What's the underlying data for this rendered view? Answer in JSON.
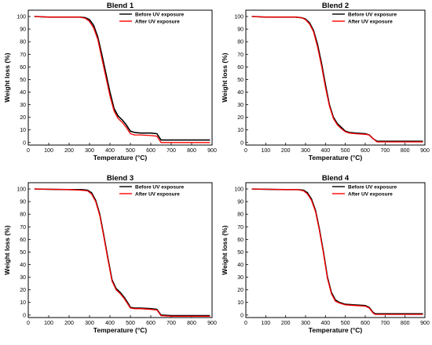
{
  "figure": {
    "background": "#ffffff"
  },
  "chart_data": [
    {
      "type": "line",
      "title": "Blend 1",
      "xlabel": "Temperature (°C)",
      "ylabel": "Weight loss (%)",
      "xlim": [
        0,
        900
      ],
      "ylim": [
        -2,
        105
      ],
      "xticks": [
        0,
        100,
        200,
        300,
        400,
        500,
        600,
        700,
        800,
        900
      ],
      "yticks": [
        0,
        10,
        20,
        30,
        40,
        50,
        60,
        70,
        80,
        90,
        100
      ],
      "grid": false,
      "legend_position": "top-right",
      "series": [
        {
          "name": "Before UV exposure",
          "color": "#000000",
          "x": [
            30,
            100,
            200,
            250,
            280,
            300,
            320,
            340,
            360,
            380,
            400,
            420,
            440,
            460,
            480,
            500,
            520,
            550,
            600,
            630,
            650,
            700,
            800,
            890
          ],
          "y": [
            100,
            99.5,
            99.5,
            99.5,
            99,
            97.5,
            93,
            84,
            70,
            55,
            40,
            27,
            21,
            18,
            14,
            9,
            8,
            7.5,
            7.5,
            7,
            2,
            2,
            2,
            2
          ]
        },
        {
          "name": "After UV exposure",
          "color": "#ff0000",
          "x": [
            30,
            100,
            200,
            250,
            280,
            300,
            320,
            340,
            360,
            380,
            400,
            420,
            440,
            460,
            480,
            500,
            520,
            550,
            600,
            630,
            650,
            700,
            800,
            890
          ],
          "y": [
            100,
            99.5,
            99.5,
            99.5,
            98.5,
            96,
            91,
            82,
            67,
            52,
            37,
            25,
            19,
            16,
            12,
            7,
            6,
            6,
            5.5,
            5,
            0,
            0,
            0,
            0
          ]
        }
      ]
    },
    {
      "type": "line",
      "title": "Blend 2",
      "xlabel": "Temperature (°C)",
      "ylabel": "Weight loss (%)",
      "xlim": [
        0,
        900
      ],
      "ylim": [
        -2,
        105
      ],
      "xticks": [
        0,
        100,
        200,
        300,
        400,
        500,
        600,
        700,
        800,
        900
      ],
      "yticks": [
        0,
        10,
        20,
        30,
        40,
        50,
        60,
        70,
        80,
        90,
        100
      ],
      "grid": false,
      "legend_position": "top-right",
      "series": [
        {
          "name": "Before UV exposure",
          "color": "#000000",
          "x": [
            30,
            100,
            200,
            250,
            280,
            300,
            320,
            340,
            360,
            380,
            400,
            420,
            440,
            460,
            480,
            500,
            520,
            550,
            600,
            620,
            640,
            660,
            700,
            800,
            890
          ],
          "y": [
            100,
            99.5,
            99.5,
            99.5,
            99,
            98,
            95,
            89,
            78,
            63,
            46,
            30,
            20,
            15,
            12,
            9,
            8,
            7.5,
            7,
            6,
            3,
            1,
            1,
            1,
            1
          ]
        },
        {
          "name": "After UV exposure",
          "color": "#ff0000",
          "x": [
            30,
            100,
            200,
            250,
            280,
            300,
            320,
            340,
            360,
            380,
            400,
            420,
            440,
            460,
            480,
            500,
            520,
            550,
            600,
            620,
            640,
            660,
            700,
            800,
            890
          ],
          "y": [
            100,
            99.5,
            99.5,
            99.5,
            99,
            97.5,
            94,
            88,
            76,
            61,
            44,
            29,
            19,
            14,
            11,
            8.5,
            7.5,
            7,
            6.5,
            6,
            3,
            0.5,
            0.5,
            0.5,
            0.5
          ]
        }
      ]
    },
    {
      "type": "line",
      "title": "Blend 3",
      "xlabel": "Temperature (°C)",
      "ylabel": "Weight loss (%)",
      "xlim": [
        0,
        900
      ],
      "ylim": [
        -2,
        105
      ],
      "xticks": [
        0,
        100,
        200,
        300,
        400,
        500,
        600,
        700,
        800,
        900
      ],
      "yticks": [
        0,
        10,
        20,
        30,
        40,
        50,
        60,
        70,
        80,
        90,
        100
      ],
      "grid": false,
      "legend_position": "top-right",
      "series": [
        {
          "name": "Before UV exposure",
          "color": "#000000",
          "x": [
            30,
            100,
            200,
            260,
            290,
            310,
            330,
            350,
            370,
            390,
            410,
            430,
            450,
            470,
            490,
            500,
            520,
            550,
            600,
            630,
            650,
            700,
            800,
            890
          ],
          "y": [
            100,
            99.8,
            99.5,
            99.5,
            99,
            97,
            91,
            80,
            63,
            45,
            28,
            21,
            18,
            14,
            9,
            6,
            5.5,
            5.5,
            5,
            4.5,
            0,
            -0.5,
            -0.5,
            -0.5
          ]
        },
        {
          "name": "After UV exposure",
          "color": "#ff0000",
          "x": [
            30,
            100,
            200,
            260,
            290,
            310,
            330,
            350,
            370,
            390,
            410,
            430,
            450,
            470,
            490,
            500,
            520,
            550,
            600,
            630,
            650,
            700,
            800,
            890
          ],
          "y": [
            100,
            99.8,
            99.5,
            99,
            98.5,
            96,
            90,
            79,
            62,
            44,
            27,
            20,
            17,
            13,
            8,
            5.5,
            5,
            5,
            4.5,
            4,
            -0.5,
            -1,
            -1,
            -1
          ]
        }
      ]
    },
    {
      "type": "line",
      "title": "Blend 4",
      "xlabel": "Temperature (°C)",
      "ylabel": "Weight loss (%)",
      "xlim": [
        0,
        900
      ],
      "ylim": [
        -2,
        105
      ],
      "xticks": [
        0,
        100,
        200,
        300,
        400,
        500,
        600,
        700,
        800,
        900
      ],
      "yticks": [
        0,
        10,
        20,
        30,
        40,
        50,
        60,
        70,
        80,
        90,
        100
      ],
      "grid": false,
      "legend_position": "top-right",
      "series": [
        {
          "name": "Before UV exposure",
          "color": "#000000",
          "x": [
            30,
            100,
            200,
            260,
            290,
            310,
            330,
            350,
            370,
            390,
            410,
            430,
            450,
            470,
            500,
            550,
            600,
            620,
            640,
            650,
            700,
            800,
            890
          ],
          "y": [
            100,
            99.8,
            99.5,
            99.5,
            99,
            97,
            92,
            83,
            68,
            50,
            30,
            18,
            12,
            10,
            8.5,
            8,
            7.5,
            6,
            2,
            1,
            1,
            1,
            1
          ]
        },
        {
          "name": "After UV exposure",
          "color": "#ff0000",
          "x": [
            30,
            100,
            200,
            260,
            290,
            310,
            330,
            350,
            370,
            390,
            410,
            430,
            450,
            470,
            500,
            550,
            600,
            620,
            640,
            650,
            700,
            800,
            890
          ],
          "y": [
            100,
            99.8,
            99.5,
            99.5,
            98.5,
            96,
            91,
            82,
            67,
            49,
            29,
            17,
            11,
            9.5,
            8,
            7.5,
            7,
            5.5,
            1.5,
            0.5,
            0.5,
            0.5,
            0.5
          ]
        }
      ]
    }
  ]
}
